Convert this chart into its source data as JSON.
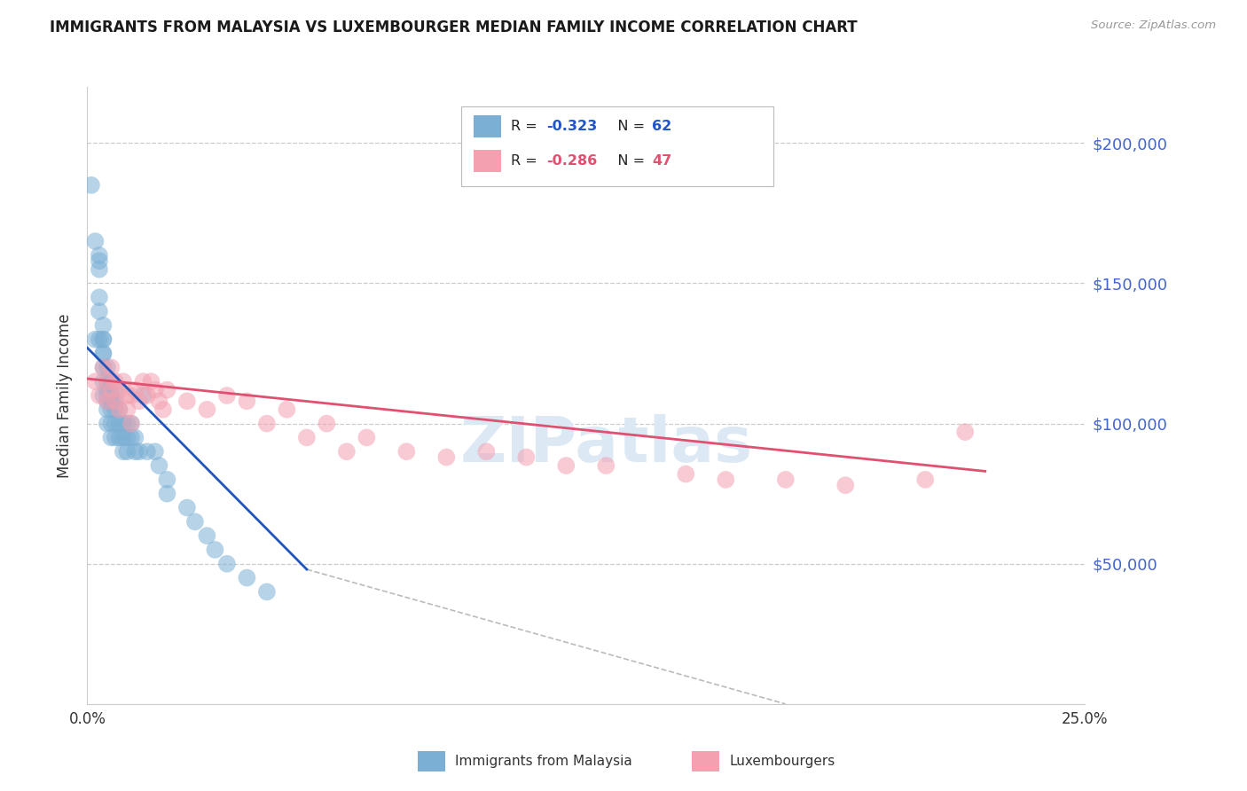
{
  "title": "IMMIGRANTS FROM MALAYSIA VS LUXEMBOURGER MEDIAN FAMILY INCOME CORRELATION CHART",
  "source": "Source: ZipAtlas.com",
  "ylabel_label": "Median Family Income",
  "yticks": [
    0,
    50000,
    100000,
    150000,
    200000
  ],
  "ytick_labels": [
    "",
    "$50,000",
    "$100,000",
    "$150,000",
    "$200,000"
  ],
  "xlim": [
    0.0,
    0.25
  ],
  "ylim": [
    0,
    220000
  ],
  "legend_entries": [
    {
      "label_r": "R = ",
      "label_rval": "-0.323",
      "label_n": "   N = ",
      "label_nval": "62",
      "color": "#7bafd4"
    },
    {
      "label_r": "R = ",
      "label_rval": "-0.286",
      "label_n": "   N = ",
      "label_nval": "47",
      "color": "#f4a0b0"
    }
  ],
  "bottom_legend": [
    "Immigrants from Malaysia",
    "Luxembourgers"
  ],
  "blue_scatter_x": [
    0.001,
    0.002,
    0.002,
    0.003,
    0.003,
    0.003,
    0.003,
    0.003,
    0.003,
    0.004,
    0.004,
    0.004,
    0.004,
    0.004,
    0.004,
    0.004,
    0.004,
    0.005,
    0.005,
    0.005,
    0.005,
    0.005,
    0.005,
    0.005,
    0.006,
    0.006,
    0.006,
    0.006,
    0.006,
    0.006,
    0.007,
    0.007,
    0.007,
    0.007,
    0.007,
    0.008,
    0.008,
    0.008,
    0.009,
    0.009,
    0.009,
    0.01,
    0.01,
    0.01,
    0.011,
    0.011,
    0.012,
    0.012,
    0.013,
    0.014,
    0.015,
    0.017,
    0.018,
    0.02,
    0.02,
    0.025,
    0.027,
    0.03,
    0.032,
    0.035,
    0.04,
    0.045
  ],
  "blue_scatter_y": [
    185000,
    130000,
    165000,
    160000,
    158000,
    155000,
    145000,
    140000,
    130000,
    135000,
    130000,
    125000,
    120000,
    115000,
    110000,
    130000,
    125000,
    120000,
    115000,
    112000,
    110000,
    108000,
    105000,
    100000,
    115000,
    110000,
    108000,
    105000,
    100000,
    95000,
    112000,
    108000,
    105000,
    100000,
    95000,
    105000,
    100000,
    95000,
    100000,
    95000,
    90000,
    100000,
    95000,
    90000,
    100000,
    95000,
    95000,
    90000,
    90000,
    110000,
    90000,
    90000,
    85000,
    80000,
    75000,
    70000,
    65000,
    60000,
    55000,
    50000,
    45000,
    40000
  ],
  "pink_scatter_x": [
    0.002,
    0.003,
    0.004,
    0.005,
    0.005,
    0.006,
    0.006,
    0.007,
    0.007,
    0.008,
    0.008,
    0.009,
    0.01,
    0.01,
    0.011,
    0.011,
    0.012,
    0.013,
    0.014,
    0.015,
    0.016,
    0.017,
    0.018,
    0.019,
    0.02,
    0.025,
    0.03,
    0.035,
    0.04,
    0.045,
    0.05,
    0.055,
    0.06,
    0.065,
    0.07,
    0.08,
    0.09,
    0.1,
    0.11,
    0.12,
    0.13,
    0.15,
    0.16,
    0.175,
    0.19,
    0.21,
    0.22
  ],
  "pink_scatter_y": [
    115000,
    110000,
    120000,
    115000,
    108000,
    120000,
    112000,
    115000,
    108000,
    112000,
    105000,
    115000,
    110000,
    105000,
    110000,
    100000,
    112000,
    108000,
    115000,
    110000,
    115000,
    112000,
    108000,
    105000,
    112000,
    108000,
    105000,
    110000,
    108000,
    100000,
    105000,
    95000,
    100000,
    90000,
    95000,
    90000,
    88000,
    90000,
    88000,
    85000,
    85000,
    82000,
    80000,
    80000,
    78000,
    80000,
    97000
  ],
  "blue_line_x": [
    0.0,
    0.055
  ],
  "blue_line_y": [
    127000,
    48000
  ],
  "pink_line_x": [
    0.0,
    0.225
  ],
  "pink_line_y": [
    116000,
    83000
  ],
  "dashed_line_x": [
    0.055,
    0.175
  ],
  "dashed_line_y": [
    48000,
    0
  ],
  "scatter_color_blue": "#7bafd4",
  "scatter_color_pink": "#f4a0b0",
  "line_color_blue": "#2255bb",
  "line_color_pink": "#e05070",
  "dashed_line_color": "#bbbbbb",
  "background_color": "#ffffff",
  "grid_color": "#cccccc",
  "title_fontsize": 12,
  "ytick_color": "#4466cc",
  "watermark_text": "ZIPatlas",
  "watermark_color": "#dde8f5"
}
